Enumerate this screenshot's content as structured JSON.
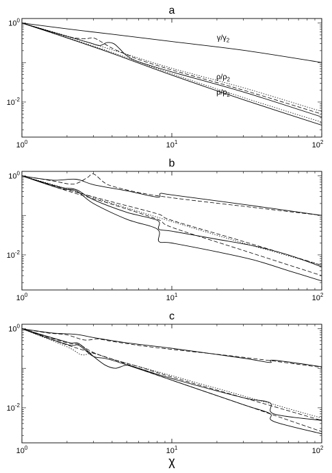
{
  "chart_data": [
    {
      "type": "line",
      "panel_label": "a",
      "x_scale": "log",
      "y_scale": "log",
      "xlim": [
        1,
        100
      ],
      "ylim": [
        0.0013,
        1.3
      ],
      "x_ticks": [
        {
          "value": 1,
          "label": "10",
          "exp": "0"
        },
        {
          "value": 10,
          "label": "10",
          "exp": "1"
        },
        {
          "value": 100,
          "label": "10",
          "exp": "2"
        }
      ],
      "y_ticks": [
        {
          "value": 1,
          "label": "10",
          "exp": "0"
        },
        {
          "value": 0.01,
          "label": "10",
          "exp": "-2"
        }
      ],
      "curve_labels": [
        {
          "text": "γ/γ",
          "sub": "2",
          "x": 22,
          "y": 0.37
        },
        {
          "text": "ρ/ρ",
          "sub": "2",
          "x": 22,
          "y": 0.038
        },
        {
          "text": "p/p",
          "sub": "2",
          "x": 22,
          "y": 0.0155
        }
      ],
      "series": [
        {
          "style": "solid",
          "x": [
            1,
            2,
            4,
            10,
            30,
            100
          ],
          "y": [
            1,
            0.71,
            0.52,
            0.34,
            0.205,
            0.1
          ]
        },
        {
          "style": "solid",
          "x": [
            1,
            2,
            2.8,
            3.3,
            3.7,
            4.1,
            4.5,
            5,
            6,
            10,
            30,
            100
          ],
          "y": [
            1,
            0.46,
            0.32,
            0.27,
            0.32,
            0.3,
            0.22,
            0.15,
            0.105,
            0.058,
            0.018,
            0.0042
          ]
        },
        {
          "style": "dashed",
          "x": [
            1,
            2,
            2.6,
            3.0,
            3.4,
            4,
            5,
            6,
            10,
            30,
            100
          ],
          "y": [
            1,
            0.46,
            0.4,
            0.42,
            0.33,
            0.23,
            0.16,
            0.12,
            0.065,
            0.02,
            0.005
          ]
        },
        {
          "style": "dotted",
          "x": [
            1,
            2,
            4,
            10,
            30,
            100
          ],
          "y": [
            1,
            0.47,
            0.21,
            0.072,
            0.023,
            0.0058
          ]
        },
        {
          "style": "solid",
          "x": [
            1,
            2,
            4,
            10,
            30,
            100
          ],
          "y": [
            1,
            0.42,
            0.17,
            0.048,
            0.0115,
            0.0026
          ]
        },
        {
          "style": "dotted",
          "x": [
            1,
            2,
            4,
            10,
            30,
            100
          ],
          "y": [
            1,
            0.43,
            0.18,
            0.052,
            0.013,
            0.0031
          ]
        }
      ]
    },
    {
      "type": "line",
      "panel_label": "b",
      "x_scale": "log",
      "y_scale": "log",
      "xlim": [
        1,
        100
      ],
      "ylim": [
        0.0013,
        1.3
      ],
      "x_ticks": [
        {
          "value": 1,
          "label": "10",
          "exp": "0"
        },
        {
          "value": 10,
          "label": "10",
          "exp": "1"
        },
        {
          "value": 100,
          "label": "10",
          "exp": "2"
        }
      ],
      "y_ticks": [
        {
          "value": 1,
          "label": "10",
          "exp": "0"
        },
        {
          "value": 0.01,
          "label": "10",
          "exp": "-2"
        }
      ],
      "curve_labels": [],
      "series": [
        {
          "style": "solid",
          "x": [
            1,
            1.6,
            2.3,
            3,
            5,
            8,
            8.4,
            10,
            30,
            100
          ],
          "y": [
            1,
            0.78,
            0.82,
            0.6,
            0.42,
            0.29,
            0.36,
            0.33,
            0.19,
            0.1
          ]
        },
        {
          "style": "dashed",
          "x": [
            1,
            1.6,
            2.2,
            2.7,
            3.0,
            3.5,
            4,
            6,
            10,
            30,
            100
          ],
          "y": [
            1,
            0.75,
            0.62,
            0.88,
            1.12,
            0.7,
            0.55,
            0.38,
            0.28,
            0.17,
            0.1
          ]
        },
        {
          "style": "solid",
          "x": [
            1,
            1.8,
            2.3,
            3,
            5,
            8,
            8.2,
            10,
            20,
            35,
            60,
            100
          ],
          "y": [
            1,
            0.52,
            0.45,
            0.25,
            0.12,
            0.075,
            0.045,
            0.04,
            0.025,
            0.017,
            0.01,
            0.005
          ]
        },
        {
          "style": "dashed",
          "x": [
            1,
            2,
            4,
            8,
            10,
            30,
            100
          ],
          "y": [
            1,
            0.45,
            0.22,
            0.11,
            0.075,
            0.022,
            0.0055
          ]
        },
        {
          "style": "dotted",
          "x": [
            1,
            2,
            4,
            10,
            30,
            100
          ],
          "y": [
            1,
            0.47,
            0.2,
            0.07,
            0.02,
            0.0055
          ]
        },
        {
          "style": "solid",
          "x": [
            1,
            1.8,
            2.3,
            3,
            5,
            8,
            8.2,
            10,
            20,
            35,
            60,
            100
          ],
          "y": [
            1,
            0.48,
            0.42,
            0.2,
            0.08,
            0.045,
            0.022,
            0.02,
            0.012,
            0.0075,
            0.004,
            0.0022
          ]
        },
        {
          "style": "dashed",
          "x": [
            1,
            2,
            4,
            8,
            10,
            30,
            100
          ],
          "y": [
            1,
            0.42,
            0.19,
            0.08,
            0.05,
            0.013,
            0.003
          ]
        }
      ]
    },
    {
      "type": "line",
      "panel_label": "c",
      "x_scale": "log",
      "y_scale": "log",
      "xlim": [
        1,
        100
      ],
      "ylim": [
        0.0013,
        1.3
      ],
      "x_ticks": [
        {
          "value": 1,
          "label": "10",
          "exp": "0"
        },
        {
          "value": 10,
          "label": "10",
          "exp": "1"
        },
        {
          "value": 100,
          "label": "10",
          "exp": "2"
        }
      ],
      "y_ticks": [
        {
          "value": 1,
          "label": "10",
          "exp": "0"
        },
        {
          "value": 0.01,
          "label": "10",
          "exp": "-2"
        }
      ],
      "xlabel": "χ",
      "curve_labels": [],
      "series": [
        {
          "style": "solid",
          "x": [
            1,
            1.6,
            2.3,
            3,
            5,
            10,
            30,
            45,
            48,
            100
          ],
          "y": [
            1,
            0.78,
            0.72,
            0.6,
            0.44,
            0.32,
            0.18,
            0.14,
            0.16,
            0.11
          ]
        },
        {
          "style": "dashed",
          "x": [
            1,
            1.5,
            2,
            2.6,
            3.2,
            4,
            6,
            10,
            30,
            100
          ],
          "y": [
            1,
            0.78,
            0.7,
            0.52,
            0.55,
            0.48,
            0.38,
            0.3,
            0.19,
            0.105
          ]
        },
        {
          "style": "solid",
          "x": [
            1,
            2,
            2.4,
            3,
            3.6,
            4.2,
            5,
            6,
            10,
            30,
            45,
            48,
            100
          ],
          "y": [
            1,
            0.46,
            0.42,
            0.2,
            0.12,
            0.1,
            0.12,
            0.1,
            0.055,
            0.018,
            0.0135,
            0.007,
            0.0048
          ]
        },
        {
          "style": "dashed",
          "x": [
            1,
            2,
            2.4,
            3,
            4,
            6,
            10,
            30,
            100
          ],
          "y": [
            1,
            0.44,
            0.4,
            0.25,
            0.17,
            0.11,
            0.06,
            0.018,
            0.0048
          ]
        },
        {
          "style": "dotted",
          "x": [
            1,
            2,
            2.5,
            3,
            4,
            10,
            30,
            100
          ],
          "y": [
            1,
            0.35,
            0.22,
            0.24,
            0.17,
            0.065,
            0.02,
            0.0055
          ]
        },
        {
          "style": "solid",
          "x": [
            1,
            2,
            2.4,
            3,
            4,
            10,
            30,
            45,
            48,
            100
          ],
          "y": [
            1,
            0.4,
            0.38,
            0.2,
            0.16,
            0.05,
            0.012,
            0.0072,
            0.0045,
            0.0022
          ]
        },
        {
          "style": "dashed",
          "x": [
            1,
            2,
            4,
            10,
            30,
            100
          ],
          "y": [
            1,
            0.39,
            0.17,
            0.05,
            0.012,
            0.0025
          ]
        }
      ]
    }
  ]
}
